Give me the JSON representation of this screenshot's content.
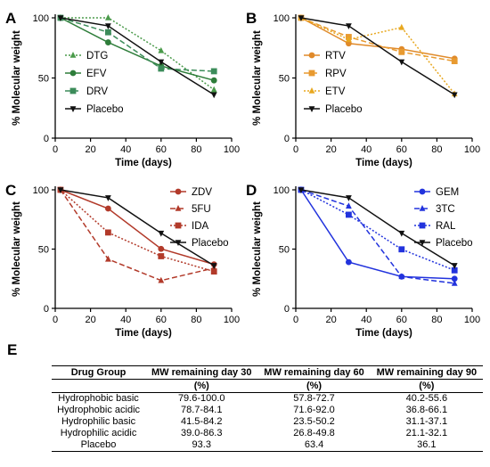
{
  "chart_data": [
    {
      "type": "line",
      "panel_label": "A",
      "xlabel": "Time (days)",
      "ylabel": "% Molecular weight",
      "xlim": [
        0,
        100
      ],
      "ylim": [
        0,
        100
      ],
      "xticks": [
        0,
        20,
        40,
        60,
        80,
        100
      ],
      "yticks": [
        0,
        50,
        100
      ],
      "legend_position": "bottom-left",
      "series": [
        {
          "name": "DTG",
          "color": "#4a9a4a",
          "dash": "2,2",
          "marker": "triangle",
          "x": [
            3,
            30,
            60,
            90
          ],
          "y": [
            100,
            100,
            72.7,
            40.2
          ]
        },
        {
          "name": "EFV",
          "color": "#2e7d3a",
          "dash": "",
          "marker": "circle",
          "x": [
            3,
            30,
            60,
            90
          ],
          "y": [
            100,
            79.6,
            60,
            48
          ]
        },
        {
          "name": "DRV",
          "color": "#3c8c5a",
          "dash": "6,3",
          "marker": "square",
          "x": [
            3,
            30,
            60,
            90
          ],
          "y": [
            100,
            88,
            57.8,
            55.6
          ]
        },
        {
          "name": "Placebo",
          "color": "#111111",
          "dash": "",
          "marker": "triangle-down",
          "x": [
            3,
            30,
            60,
            90
          ],
          "y": [
            100,
            93.3,
            63.4,
            36.1
          ]
        }
      ]
    },
    {
      "type": "line",
      "panel_label": "B",
      "xlabel": "Time (days)",
      "ylabel": "% Molecular weight",
      "xlim": [
        0,
        100
      ],
      "ylim": [
        0,
        100
      ],
      "xticks": [
        0,
        20,
        40,
        60,
        80,
        100
      ],
      "yticks": [
        0,
        50,
        100
      ],
      "legend_position": "bottom-left",
      "series": [
        {
          "name": "RTV",
          "color": "#e08a2a",
          "dash": "",
          "marker": "circle",
          "x": [
            3,
            30,
            60,
            90
          ],
          "y": [
            100,
            78.7,
            74,
            66.1
          ]
        },
        {
          "name": "RPV",
          "color": "#e89a30",
          "dash": "6,3",
          "marker": "square",
          "x": [
            3,
            30,
            60,
            90
          ],
          "y": [
            100,
            84.1,
            71.6,
            64
          ]
        },
        {
          "name": "ETV",
          "color": "#e8a820",
          "dash": "2,2",
          "marker": "triangle",
          "x": [
            3,
            30,
            60,
            90
          ],
          "y": [
            100,
            82,
            92,
            36.8
          ]
        },
        {
          "name": "Placebo",
          "color": "#111111",
          "dash": "",
          "marker": "triangle-down",
          "x": [
            3,
            30,
            60,
            90
          ],
          "y": [
            100,
            93.3,
            63.4,
            36.1
          ]
        }
      ]
    },
    {
      "type": "line",
      "panel_label": "C",
      "xlabel": "Time (days)",
      "ylabel": "% Molecular weight",
      "xlim": [
        0,
        100
      ],
      "ylim": [
        0,
        100
      ],
      "xticks": [
        0,
        20,
        40,
        60,
        80,
        100
      ],
      "yticks": [
        0,
        50,
        100
      ],
      "legend_position": "top-right",
      "series": [
        {
          "name": "ZDV",
          "color": "#b23a2a",
          "dash": "",
          "marker": "circle",
          "x": [
            3,
            30,
            60,
            90
          ],
          "y": [
            100,
            84.2,
            50.2,
            37.1
          ]
        },
        {
          "name": "5FU",
          "color": "#b23a2a",
          "dash": "6,3",
          "marker": "triangle",
          "x": [
            3,
            30,
            60,
            90
          ],
          "y": [
            100,
            41.5,
            23.5,
            34
          ]
        },
        {
          "name": "IDA",
          "color": "#b23a2a",
          "dash": "2,2",
          "marker": "square",
          "x": [
            3,
            30,
            60,
            90
          ],
          "y": [
            100,
            64,
            44,
            31.1
          ]
        },
        {
          "name": "Placebo",
          "color": "#111111",
          "dash": "",
          "marker": "triangle-down",
          "x": [
            3,
            30,
            60,
            90
          ],
          "y": [
            100,
            93.3,
            63.4,
            36.1
          ]
        }
      ]
    },
    {
      "type": "line",
      "panel_label": "D",
      "xlabel": "Time (days)",
      "ylabel": "% Molecular weight",
      "xlim": [
        0,
        100
      ],
      "ylim": [
        0,
        100
      ],
      "xticks": [
        0,
        20,
        40,
        60,
        80,
        100
      ],
      "yticks": [
        0,
        50,
        100
      ],
      "legend_position": "top-right",
      "series": [
        {
          "name": "GEM",
          "color": "#2233dd",
          "dash": "",
          "marker": "circle",
          "x": [
            3,
            30,
            60,
            90
          ],
          "y": [
            100,
            39,
            26.8,
            25
          ]
        },
        {
          "name": "3TC",
          "color": "#2233dd",
          "dash": "6,3",
          "marker": "triangle",
          "x": [
            3,
            30,
            60,
            90
          ],
          "y": [
            100,
            86.3,
            26.8,
            21.1
          ]
        },
        {
          "name": "RAL",
          "color": "#2233dd",
          "dash": "2,2",
          "marker": "square",
          "x": [
            3,
            30,
            60,
            90
          ],
          "y": [
            100,
            79,
            49.8,
            32.1
          ]
        },
        {
          "name": "Placebo",
          "color": "#111111",
          "dash": "",
          "marker": "triangle-down",
          "x": [
            3,
            30,
            60,
            90
          ],
          "y": [
            100,
            93.3,
            63.4,
            36.1
          ]
        }
      ]
    },
    {
      "type": "table",
      "panel_label": "E",
      "headers": [
        [
          "Drug Group",
          "MW remaining day 30",
          "MW remaining day 60",
          "MW remaining day 90"
        ],
        [
          "",
          "(%)",
          "(%)",
          "(%)"
        ]
      ],
      "rows": [
        [
          "Hydrophobic basic",
          "79.6-100.0",
          "57.8-72.7",
          "40.2-55.6"
        ],
        [
          "Hydrophobic acidic",
          "78.7-84.1",
          "71.6-92.0",
          "36.8-66.1"
        ],
        [
          "Hydrophilic basic",
          "41.5-84.2",
          "23.5-50.2",
          "31.1-37.1"
        ],
        [
          "Hydrophilic acidic",
          "39.0-86.3",
          "26.8-49.8",
          "21.1-32.1"
        ],
        [
          "Placebo",
          "93.3",
          "63.4",
          "36.1"
        ]
      ]
    }
  ]
}
